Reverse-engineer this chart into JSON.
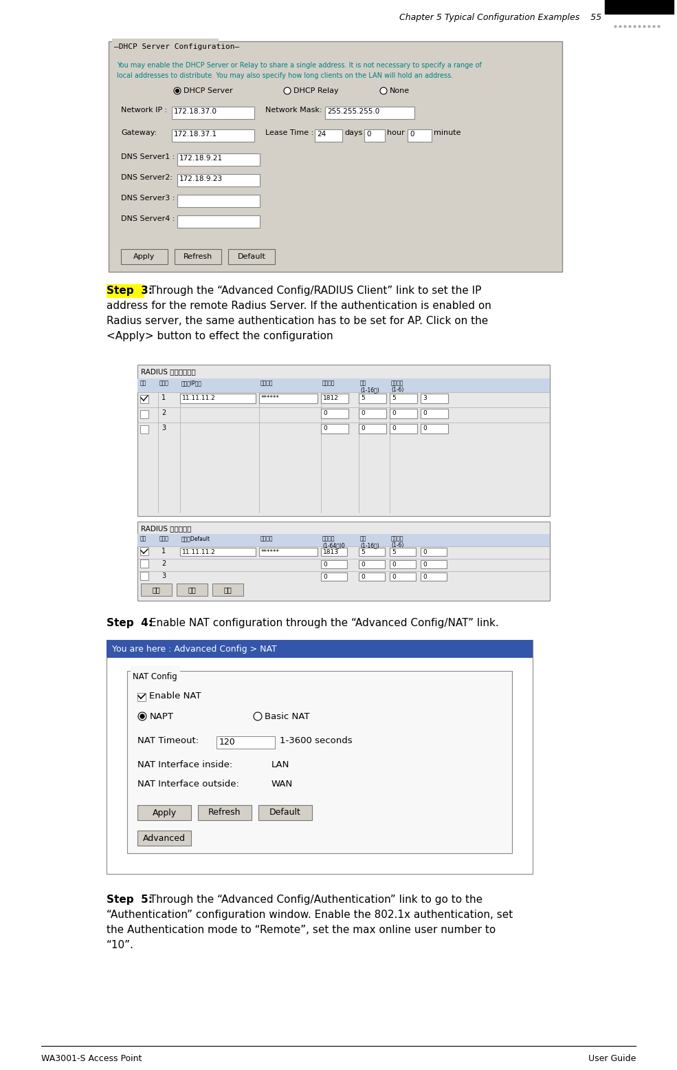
{
  "header_italic": "Chapter 5 Typical Configuration Examples    55",
  "footer_left": "WA3001-S Access Point",
  "footer_right": "User Guide",
  "bg_color": "#ffffff",
  "panel_color": "#d4d0c8",
  "dhcp_info_color": "#008080",
  "dhcp_info_line1": "You may enable the DHCP Server or Relay to share a single address. It is not necessary to specify a range of",
  "dhcp_info_line2": "local addresses to distribute. You may also specify how long clients on the LAN will hold an address.",
  "step3_para": "Through the “Advanced Config/RADIUS Client” link to set the IP address for the remote Radius Server. If the authentication is enabled on Radius server, the same authentication has to be set for AP. Click on the <Apply> button to effect the configuration",
  "step4_para": "Enable NAT configuration through the “Advanced Config/NAT” link.",
  "step5_para": "Through the “Advanced Config/Authentication” link to go to the “Authentication” configuration window. Enable the 802.1x authentication, set the Authentication mode to “Remote”, set the max online user number to “10”.",
  "nat_blue": "#3355aa",
  "nat_header_text": "You are here : Advanced Config > NAT"
}
